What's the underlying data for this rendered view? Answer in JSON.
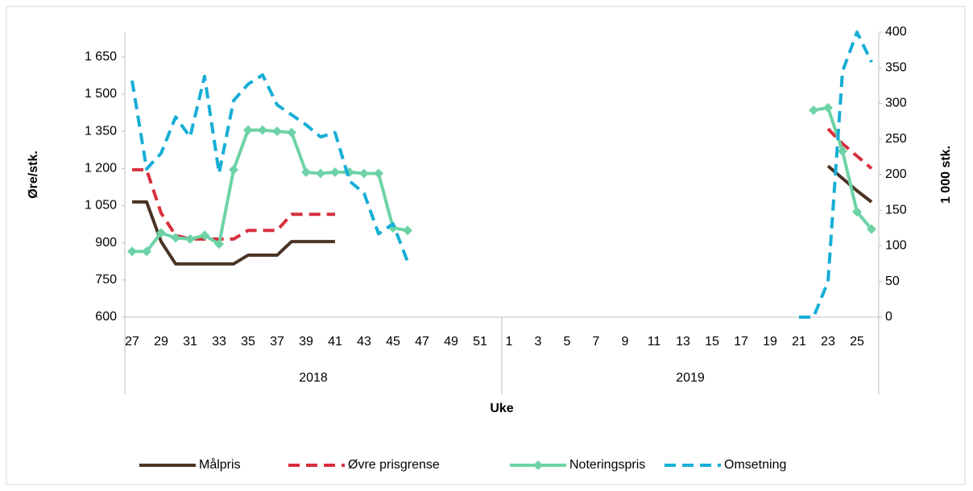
{
  "chart_data": {
    "type": "line",
    "x_label": "Uke",
    "y_label": "Øre/stk.",
    "y2_label": "1 000 stk.",
    "categories": [
      "27",
      null,
      "29",
      null,
      "31",
      null,
      "33",
      null,
      "35",
      null,
      "37",
      null,
      "39",
      null,
      "41",
      null,
      "43",
      null,
      "45",
      null,
      "47",
      null,
      "49",
      null,
      "51",
      null,
      "1",
      null,
      "3",
      null,
      "5",
      null,
      "7",
      null,
      "9",
      null,
      "11",
      null,
      "13",
      null,
      "15",
      null,
      "17",
      null,
      "19",
      null,
      "21",
      null,
      "23",
      null,
      "25",
      null
    ],
    "groups": [
      {
        "label": "2018",
        "count": 26
      },
      {
        "label": "2019",
        "count": 26
      }
    ],
    "ylim": [
      600,
      1750
    ],
    "yticks": [
      600,
      750,
      900,
      {
        "value": 1050,
        "label": "1 050"
      },
      {
        "value": 1200,
        "label": "1 200"
      },
      {
        "value": 1350,
        "label": "1 350"
      },
      {
        "value": 1500,
        "label": "1 500"
      },
      {
        "value": 1650,
        "label": "1 650"
      }
    ],
    "y2lim": [
      0,
      400
    ],
    "y2ticks": [
      0,
      50,
      100,
      150,
      200,
      250,
      300,
      350,
      400
    ],
    "legend": "bottom",
    "series": [
      {
        "name": "Målpris",
        "color": "#4b3426",
        "dashed": false,
        "values": [
          1065,
          1065,
          905,
          815,
          815,
          815,
          815,
          815,
          850,
          850,
          850,
          905,
          905,
          905,
          905,
          null,
          null,
          null,
          null,
          null,
          null,
          null,
          null,
          null,
          null,
          null,
          null,
          null,
          null,
          null,
          null,
          null,
          null,
          null,
          null,
          null,
          null,
          null,
          null,
          null,
          null,
          null,
          null,
          null,
          null,
          null,
          null,
          null,
          1210,
          1160,
          1110,
          1065
        ]
      },
      {
        "name": "Øvre prisgrense",
        "color": "#d7303d",
        "dashed": true,
        "values": [
          1195,
          1195,
          1020,
          930,
          915,
          915,
          915,
          915,
          950,
          950,
          950,
          1015,
          1015,
          1015,
          1015,
          null,
          null,
          null,
          null,
          null,
          null,
          null,
          null,
          null,
          null,
          null,
          null,
          null,
          null,
          null,
          null,
          null,
          null,
          null,
          null,
          null,
          null,
          null,
          null,
          null,
          null,
          null,
          null,
          null,
          null,
          null,
          null,
          null,
          1360,
          1300,
          1250,
          1200
        ]
      },
      {
        "name": "Noteringspris",
        "color": "#6dd3a6",
        "dashed": false,
        "marker": "diamond",
        "values": [
          865,
          865,
          940,
          920,
          915,
          930,
          895,
          1195,
          1355,
          1355,
          1350,
          1345,
          1185,
          1180,
          1185,
          1185,
          1180,
          1180,
          960,
          950,
          null,
          null,
          null,
          null,
          null,
          null,
          null,
          null,
          null,
          null,
          null,
          null,
          null,
          null,
          null,
          null,
          null,
          null,
          null,
          null,
          null,
          null,
          null,
          null,
          null,
          null,
          null,
          1435,
          1445,
          1270,
          1025,
          955
        ]
      },
      {
        "name": "Omsetning",
        "color": "#16aed6",
        "dashed": true,
        "axis": "y2",
        "values": [
          332,
          208,
          230,
          281,
          253,
          338,
          202,
          304,
          327,
          340,
          298,
          284,
          270,
          253,
          259,
          191,
          174,
          117,
          131,
          78,
          null,
          null,
          null,
          null,
          null,
          null,
          null,
          null,
          null,
          null,
          null,
          null,
          null,
          null,
          null,
          null,
          null,
          null,
          null,
          null,
          null,
          null,
          null,
          null,
          null,
          null,
          0,
          0,
          50,
          345,
          400,
          358
        ]
      }
    ]
  }
}
